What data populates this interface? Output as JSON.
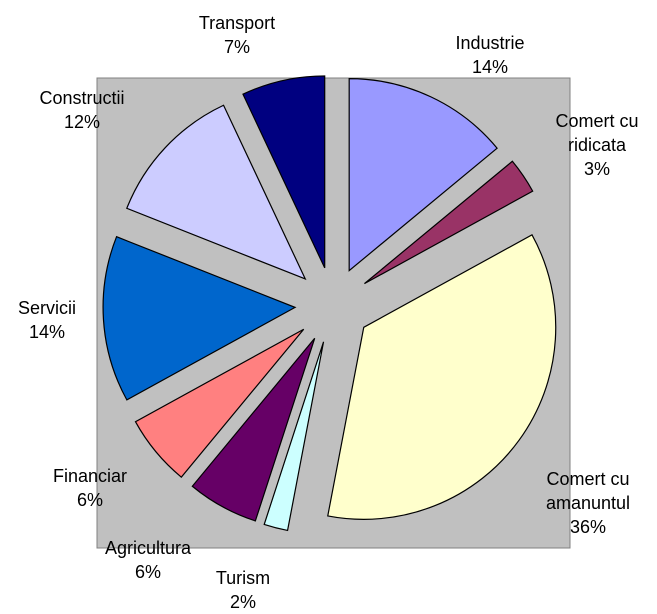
{
  "chart_data": {
    "type": "pie",
    "categories": [
      "Industrie",
      "Comert cu ridicata",
      "Comert cu amanuntul",
      "Turism",
      "Agricultura",
      "Financiar",
      "Servicii",
      "Constructii",
      "Transport"
    ],
    "values": [
      14,
      3,
      36,
      2,
      6,
      6,
      14,
      12,
      7
    ],
    "value_labels": [
      "14%",
      "3%",
      "36%",
      "2%",
      "6%",
      "6%",
      "14%",
      "12%",
      "7%"
    ],
    "colors": [
      "#9999ff",
      "#993366",
      "#ffffcc",
      "#ccffff",
      "#660066",
      "#ff8080",
      "#0066cc",
      "#ccccff",
      "#000080"
    ],
    "exploded": true
  }
}
